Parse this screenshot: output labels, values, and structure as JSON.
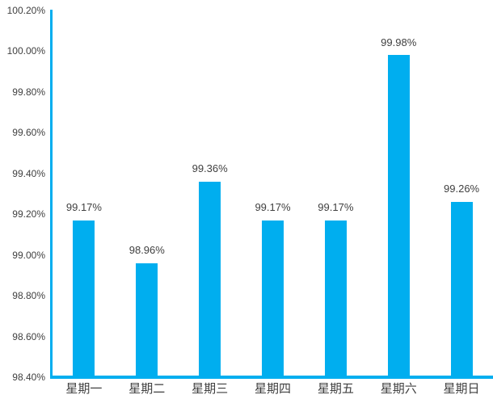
{
  "chart_data": {
    "type": "bar",
    "title": "",
    "xlabel": "",
    "ylabel": "",
    "categories": [
      "星期一",
      "星期二",
      "星期三",
      "星期四",
      "星期五",
      "星期六",
      "星期日"
    ],
    "values": [
      99.17,
      98.96,
      99.36,
      99.17,
      99.17,
      99.98,
      99.26
    ],
    "data_labels": [
      "99.17%",
      "98.96%",
      "99.36%",
      "99.17%",
      "99.17%",
      "99.98%",
      "99.26%"
    ],
    "y_ticks": [
      100.2,
      100.0,
      99.8,
      99.6,
      99.4,
      99.2,
      99.0,
      98.8,
      98.6,
      98.4
    ],
    "y_tick_labels": [
      "100.20%",
      "100.00%",
      "99.80%",
      "99.60%",
      "99.40%",
      "99.20%",
      "99.00%",
      "98.80%",
      "98.60%",
      "98.40%"
    ],
    "ylim": [
      98.4,
      100.2
    ],
    "grid": false,
    "legend": false,
    "colors": {
      "bar": "#00AEEF",
      "axis_line": "#00AEEF",
      "axis_text": "#404040",
      "data_label_text": "#3f3f3f",
      "background": "#FFFFFF"
    }
  }
}
